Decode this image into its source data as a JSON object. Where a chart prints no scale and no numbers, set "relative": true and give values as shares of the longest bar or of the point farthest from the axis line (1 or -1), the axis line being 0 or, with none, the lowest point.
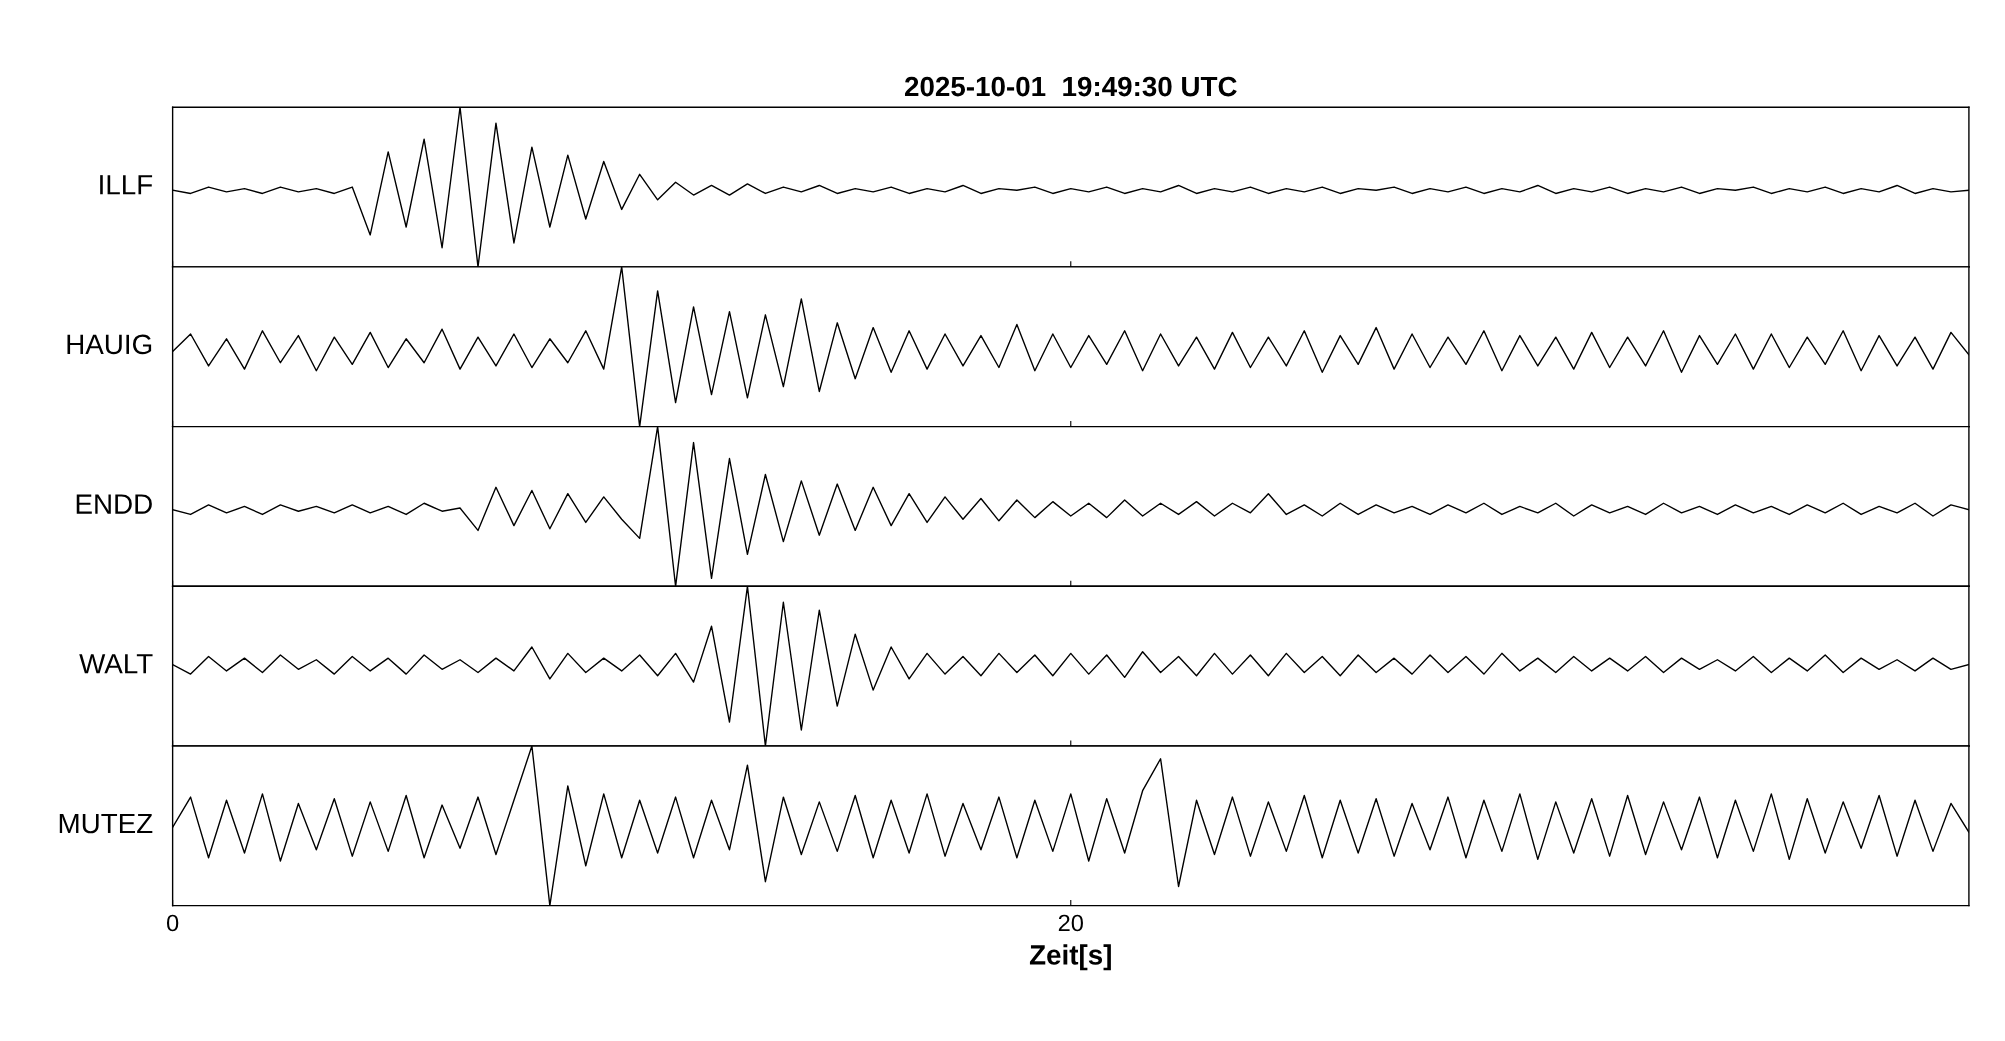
{
  "chart_data": [
    {
      "type": "line",
      "title": "2025-10-01  19:49:30 UTC",
      "ylabel": "ILLF",
      "x": [
        0,
        0.4,
        0.8,
        1.2,
        1.6,
        2,
        2.4,
        2.8,
        3.2,
        3.6,
        4,
        4.4,
        4.8,
        5.2,
        5.6,
        6,
        6.4,
        6.8,
        7.2,
        7.6,
        8,
        8.4,
        8.8,
        9.2,
        9.6,
        10,
        10.4,
        10.8,
        11.2,
        11.6,
        12,
        12.4,
        12.8,
        13.2,
        13.6,
        14,
        14.4,
        14.8,
        15.2,
        15.6,
        16,
        16.4,
        16.8,
        17.2,
        17.6,
        18,
        18.4,
        18.8,
        19.2,
        19.6,
        20,
        20.4,
        20.8,
        21.2,
        21.6,
        22,
        22.4,
        22.8,
        23.2,
        23.6,
        24,
        24.4,
        24.8,
        25.2,
        25.6,
        26,
        26.4,
        26.8,
        27.2,
        27.6,
        28,
        28.4,
        28.8,
        29.2,
        29.6,
        30,
        30.4,
        30.8,
        31.2,
        31.6,
        32,
        32.4,
        32.8,
        33.2,
        33.6,
        34,
        34.4,
        34.8,
        35.2,
        35.6,
        36,
        36.4,
        36.8,
        37.2,
        37.6,
        38,
        38.4,
        38.8,
        39.2,
        39.6,
        40
      ],
      "color": "#000000",
      "relative": true,
      "xlim": [
        0,
        40
      ],
      "xticks": [
        0,
        20
      ],
      "tick_labels": false,
      "values": [
        0.48,
        0.46,
        0.5,
        0.47,
        0.49,
        0.46,
        0.5,
        0.47,
        0.49,
        0.46,
        0.5,
        0.2,
        0.72,
        0.25,
        0.8,
        0.12,
        1.0,
        0.0,
        0.9,
        0.15,
        0.75,
        0.25,
        0.7,
        0.3,
        0.66,
        0.36,
        0.58,
        0.42,
        0.53,
        0.45,
        0.51,
        0.45,
        0.52,
        0.46,
        0.5,
        0.47,
        0.51,
        0.46,
        0.49,
        0.47,
        0.5,
        0.46,
        0.49,
        0.47,
        0.51,
        0.46,
        0.49,
        0.48,
        0.5,
        0.46,
        0.49,
        0.47,
        0.5,
        0.46,
        0.49,
        0.47,
        0.51,
        0.46,
        0.49,
        0.47,
        0.5,
        0.46,
        0.49,
        0.47,
        0.5,
        0.46,
        0.49,
        0.48,
        0.5,
        0.46,
        0.49,
        0.47,
        0.5,
        0.46,
        0.49,
        0.47,
        0.51,
        0.46,
        0.49,
        0.47,
        0.5,
        0.46,
        0.49,
        0.47,
        0.5,
        0.46,
        0.49,
        0.48,
        0.5,
        0.46,
        0.49,
        0.47,
        0.5,
        0.46,
        0.49,
        0.47,
        0.51,
        0.46,
        0.49,
        0.47,
        0.48
      ]
    },
    {
      "type": "line",
      "ylabel": "HAUIG",
      "x": [
        0,
        0.4,
        0.8,
        1.2,
        1.6,
        2,
        2.4,
        2.8,
        3.2,
        3.6,
        4,
        4.4,
        4.8,
        5.2,
        5.6,
        6,
        6.4,
        6.8,
        7.2,
        7.6,
        8,
        8.4,
        8.8,
        9.2,
        9.6,
        10,
        10.4,
        10.8,
        11.2,
        11.6,
        12,
        12.4,
        12.8,
        13.2,
        13.6,
        14,
        14.4,
        14.8,
        15.2,
        15.6,
        16,
        16.4,
        16.8,
        17.2,
        17.6,
        18,
        18.4,
        18.8,
        19.2,
        19.6,
        20,
        20.4,
        20.8,
        21.2,
        21.6,
        22,
        22.4,
        22.8,
        23.2,
        23.6,
        24,
        24.4,
        24.8,
        25.2,
        25.6,
        26,
        26.4,
        26.8,
        27.2,
        27.6,
        28,
        28.4,
        28.8,
        29.2,
        29.6,
        30,
        30.4,
        30.8,
        31.2,
        31.6,
        32,
        32.4,
        32.8,
        33.2,
        33.6,
        34,
        34.4,
        34.8,
        35.2,
        35.6,
        36,
        36.4,
        36.8,
        37.2,
        37.6,
        38,
        38.4,
        38.8,
        39.2,
        39.6,
        40
      ],
      "color": "#000000",
      "relative": true,
      "xlim": [
        0,
        40
      ],
      "xticks": [
        0,
        20
      ],
      "tick_labels": false,
      "values": [
        0.47,
        0.58,
        0.38,
        0.55,
        0.36,
        0.6,
        0.4,
        0.57,
        0.35,
        0.56,
        0.39,
        0.59,
        0.37,
        0.55,
        0.4,
        0.61,
        0.36,
        0.56,
        0.38,
        0.58,
        0.37,
        0.55,
        0.4,
        0.6,
        0.36,
        1.0,
        0.0,
        0.85,
        0.15,
        0.75,
        0.2,
        0.72,
        0.18,
        0.7,
        0.25,
        0.8,
        0.22,
        0.65,
        0.3,
        0.62,
        0.34,
        0.6,
        0.36,
        0.58,
        0.38,
        0.57,
        0.37,
        0.64,
        0.35,
        0.58,
        0.37,
        0.57,
        0.39,
        0.6,
        0.35,
        0.58,
        0.38,
        0.56,
        0.36,
        0.59,
        0.37,
        0.56,
        0.38,
        0.6,
        0.34,
        0.57,
        0.39,
        0.62,
        0.36,
        0.58,
        0.37,
        0.56,
        0.39,
        0.6,
        0.35,
        0.57,
        0.38,
        0.56,
        0.36,
        0.59,
        0.37,
        0.56,
        0.38,
        0.6,
        0.34,
        0.57,
        0.39,
        0.58,
        0.36,
        0.58,
        0.37,
        0.56,
        0.39,
        0.6,
        0.35,
        0.57,
        0.38,
        0.56,
        0.36,
        0.59,
        0.45
      ]
    },
    {
      "type": "line",
      "ylabel": "ENDD",
      "x": [
        0,
        0.4,
        0.8,
        1.2,
        1.6,
        2,
        2.4,
        2.8,
        3.2,
        3.6,
        4,
        4.4,
        4.8,
        5.2,
        5.6,
        6,
        6.4,
        6.8,
        7.2,
        7.6,
        8,
        8.4,
        8.8,
        9.2,
        9.6,
        10,
        10.4,
        10.8,
        11.2,
        11.6,
        12,
        12.4,
        12.8,
        13.2,
        13.6,
        14,
        14.4,
        14.8,
        15.2,
        15.6,
        16,
        16.4,
        16.8,
        17.2,
        17.6,
        18,
        18.4,
        18.8,
        19.2,
        19.6,
        20,
        20.4,
        20.8,
        21.2,
        21.6,
        22,
        22.4,
        22.8,
        23.2,
        23.6,
        24,
        24.4,
        24.8,
        25.2,
        25.6,
        26,
        26.4,
        26.8,
        27.2,
        27.6,
        28,
        28.4,
        28.8,
        29.2,
        29.6,
        30,
        30.4,
        30.8,
        31.2,
        31.6,
        32,
        32.4,
        32.8,
        33.2,
        33.6,
        34,
        34.4,
        34.8,
        35.2,
        35.6,
        36,
        36.4,
        36.8,
        37.2,
        37.6,
        38,
        38.4,
        38.8,
        39.2,
        39.6,
        40
      ],
      "color": "#000000",
      "relative": true,
      "xlim": [
        0,
        40
      ],
      "xticks": [
        0,
        20
      ],
      "tick_labels": false,
      "values": [
        0.48,
        0.45,
        0.51,
        0.46,
        0.5,
        0.45,
        0.51,
        0.47,
        0.5,
        0.46,
        0.51,
        0.46,
        0.5,
        0.45,
        0.52,
        0.47,
        0.49,
        0.35,
        0.62,
        0.38,
        0.6,
        0.36,
        0.58,
        0.4,
        0.56,
        0.42,
        0.3,
        1.0,
        0.0,
        0.9,
        0.05,
        0.8,
        0.2,
        0.7,
        0.28,
        0.66,
        0.32,
        0.64,
        0.35,
        0.62,
        0.38,
        0.58,
        0.4,
        0.56,
        0.42,
        0.55,
        0.41,
        0.54,
        0.43,
        0.53,
        0.44,
        0.52,
        0.43,
        0.54,
        0.44,
        0.52,
        0.45,
        0.53,
        0.44,
        0.52,
        0.46,
        0.58,
        0.45,
        0.51,
        0.44,
        0.52,
        0.45,
        0.51,
        0.46,
        0.5,
        0.45,
        0.51,
        0.46,
        0.52,
        0.45,
        0.5,
        0.46,
        0.52,
        0.44,
        0.51,
        0.46,
        0.5,
        0.45,
        0.52,
        0.46,
        0.5,
        0.45,
        0.51,
        0.46,
        0.5,
        0.45,
        0.51,
        0.46,
        0.52,
        0.45,
        0.5,
        0.46,
        0.52,
        0.44,
        0.51,
        0.48
      ]
    },
    {
      "type": "line",
      "ylabel": "WALT",
      "x": [
        0,
        0.4,
        0.8,
        1.2,
        1.6,
        2,
        2.4,
        2.8,
        3.2,
        3.6,
        4,
        4.4,
        4.8,
        5.2,
        5.6,
        6,
        6.4,
        6.8,
        7.2,
        7.6,
        8,
        8.4,
        8.8,
        9.2,
        9.6,
        10,
        10.4,
        10.8,
        11.2,
        11.6,
        12,
        12.4,
        12.8,
        13.2,
        13.6,
        14,
        14.4,
        14.8,
        15.2,
        15.6,
        16,
        16.4,
        16.8,
        17.2,
        17.6,
        18,
        18.4,
        18.8,
        19.2,
        19.6,
        20,
        20.4,
        20.8,
        21.2,
        21.6,
        22,
        22.4,
        22.8,
        23.2,
        23.6,
        24,
        24.4,
        24.8,
        25.2,
        25.6,
        26,
        26.4,
        26.8,
        27.2,
        27.6,
        28,
        28.4,
        28.8,
        29.2,
        29.6,
        30,
        30.4,
        30.8,
        31.2,
        31.6,
        32,
        32.4,
        32.8,
        33.2,
        33.6,
        34,
        34.4,
        34.8,
        35.2,
        35.6,
        36,
        36.4,
        36.8,
        37.2,
        37.6,
        38,
        38.4,
        38.8,
        39.2,
        39.6,
        40
      ],
      "color": "#000000",
      "relative": true,
      "xlim": [
        0,
        40
      ],
      "xticks": [
        0,
        20
      ],
      "tick_labels": false,
      "values": [
        0.51,
        0.45,
        0.56,
        0.47,
        0.55,
        0.46,
        0.57,
        0.48,
        0.54,
        0.45,
        0.56,
        0.47,
        0.55,
        0.45,
        0.57,
        0.48,
        0.54,
        0.46,
        0.55,
        0.47,
        0.62,
        0.42,
        0.58,
        0.46,
        0.55,
        0.47,
        0.57,
        0.44,
        0.58,
        0.4,
        0.75,
        0.15,
        1.0,
        0.0,
        0.9,
        0.1,
        0.85,
        0.25,
        0.7,
        0.35,
        0.62,
        0.42,
        0.58,
        0.45,
        0.56,
        0.44,
        0.58,
        0.46,
        0.57,
        0.44,
        0.58,
        0.45,
        0.57,
        0.43,
        0.59,
        0.46,
        0.56,
        0.44,
        0.58,
        0.45,
        0.57,
        0.44,
        0.58,
        0.46,
        0.56,
        0.44,
        0.57,
        0.46,
        0.55,
        0.45,
        0.57,
        0.46,
        0.56,
        0.45,
        0.58,
        0.47,
        0.55,
        0.46,
        0.56,
        0.47,
        0.55,
        0.47,
        0.56,
        0.46,
        0.55,
        0.48,
        0.54,
        0.47,
        0.56,
        0.46,
        0.55,
        0.47,
        0.57,
        0.46,
        0.55,
        0.48,
        0.54,
        0.47,
        0.55,
        0.48,
        0.51
      ]
    },
    {
      "type": "line",
      "ylabel": "MUTEZ",
      "xlabel": "Zeit[s]",
      "x": [
        0,
        0.4,
        0.8,
        1.2,
        1.6,
        2,
        2.4,
        2.8,
        3.2,
        3.6,
        4,
        4.4,
        4.8,
        5.2,
        5.6,
        6,
        6.4,
        6.8,
        7.2,
        7.6,
        8,
        8.4,
        8.8,
        9.2,
        9.6,
        10,
        10.4,
        10.8,
        11.2,
        11.6,
        12,
        12.4,
        12.8,
        13.2,
        13.6,
        14,
        14.4,
        14.8,
        15.2,
        15.6,
        16,
        16.4,
        16.8,
        17.2,
        17.6,
        18,
        18.4,
        18.8,
        19.2,
        19.6,
        20,
        20.4,
        20.8,
        21.2,
        21.6,
        22,
        22.4,
        22.8,
        23.2,
        23.6,
        24,
        24.4,
        24.8,
        25.2,
        25.6,
        26,
        26.4,
        26.8,
        27.2,
        27.6,
        28,
        28.4,
        28.8,
        29.2,
        29.6,
        30,
        30.4,
        30.8,
        31.2,
        31.6,
        32,
        32.4,
        32.8,
        33.2,
        33.6,
        34,
        34.4,
        34.8,
        35.2,
        35.6,
        36,
        36.4,
        36.8,
        37.2,
        37.6,
        38,
        38.4,
        38.8,
        39.2,
        39.6,
        40
      ],
      "color": "#000000",
      "relative": true,
      "xlim": [
        0,
        40
      ],
      "xticks": [
        0,
        20
      ],
      "tick_labels": "x",
      "values": [
        0.49,
        0.68,
        0.3,
        0.66,
        0.33,
        0.7,
        0.28,
        0.64,
        0.35,
        0.67,
        0.31,
        0.65,
        0.34,
        0.69,
        0.3,
        0.63,
        0.36,
        0.68,
        0.32,
        0.66,
        1.0,
        0.0,
        0.75,
        0.25,
        0.7,
        0.3,
        0.66,
        0.33,
        0.68,
        0.3,
        0.66,
        0.35,
        0.88,
        0.15,
        0.68,
        0.32,
        0.65,
        0.34,
        0.69,
        0.3,
        0.66,
        0.33,
        0.7,
        0.31,
        0.64,
        0.35,
        0.68,
        0.3,
        0.66,
        0.34,
        0.7,
        0.28,
        0.67,
        0.33,
        0.72,
        0.92,
        0.12,
        0.66,
        0.32,
        0.68,
        0.31,
        0.65,
        0.34,
        0.69,
        0.3,
        0.66,
        0.33,
        0.67,
        0.31,
        0.64,
        0.35,
        0.68,
        0.3,
        0.66,
        0.34,
        0.7,
        0.29,
        0.65,
        0.33,
        0.67,
        0.31,
        0.69,
        0.32,
        0.65,
        0.35,
        0.68,
        0.3,
        0.66,
        0.34,
        0.7,
        0.29,
        0.67,
        0.33,
        0.65,
        0.36,
        0.69,
        0.31,
        0.66,
        0.34,
        0.64,
        0.46
      ]
    }
  ]
}
